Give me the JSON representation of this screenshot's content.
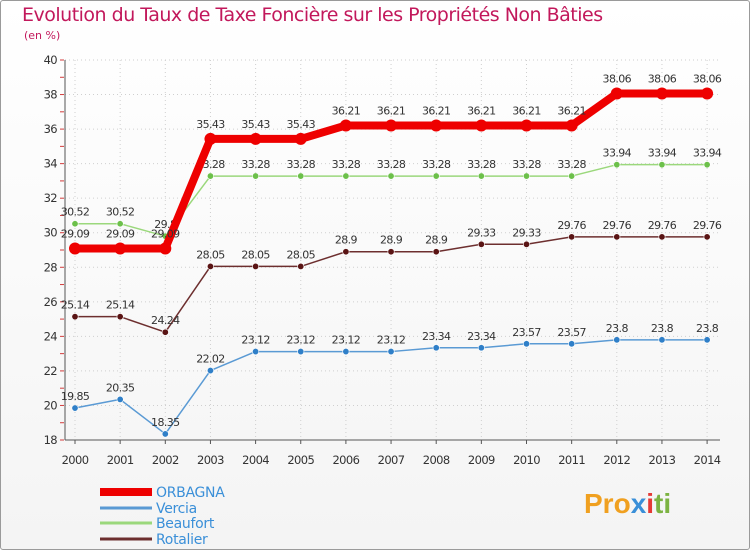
{
  "header": {
    "title": "Evolution du Taux de Taxe Foncière sur les Propriétés Non Bâties",
    "subtitle": "(en %)"
  },
  "logo": {
    "part1": "Pro",
    "part2": "x",
    "part3": "i",
    "part4": "ti"
  },
  "chart_data": {
    "type": "line",
    "title": "Evolution du Taux de Taxe Foncière sur les Propriétés Non Bâties",
    "ylabel": "(en %)",
    "xlabel": "",
    "ylim": [
      18,
      40
    ],
    "yticks": [
      18,
      20,
      22,
      24,
      26,
      28,
      30,
      32,
      34,
      36,
      38,
      40
    ],
    "categories": [
      "2000",
      "2001",
      "2002",
      "2003",
      "2004",
      "2005",
      "2006",
      "2007",
      "2008",
      "2009",
      "2010",
      "2011",
      "2012",
      "2013",
      "2014"
    ],
    "grid": true,
    "legend_position": "bottom-left",
    "series": [
      {
        "name": "Vercia",
        "color": "#5a9ad4",
        "marker": "#2f7fc8",
        "values": [
          19.85,
          20.35,
          18.35,
          22.02,
          23.12,
          23.12,
          23.12,
          23.12,
          23.34,
          23.34,
          23.57,
          23.57,
          23.8,
          23.8,
          23.8
        ],
        "labels": [
          "19.85",
          "20.35",
          "18.35",
          "22.02",
          "23.12",
          "23.12",
          "23.12",
          "23.12",
          "23.34",
          "23.34",
          "23.57",
          "23.57",
          "23.8",
          "23.8",
          "23.8"
        ]
      },
      {
        "name": "Rotalier",
        "color": "#6d2f2f",
        "marker": "#5a1414",
        "values": [
          25.14,
          25.14,
          24.24,
          28.05,
          28.05,
          28.05,
          28.9,
          28.9,
          28.9,
          29.33,
          29.33,
          29.76,
          29.76,
          29.76,
          29.76
        ],
        "labels": [
          "25.14",
          "25.14",
          "24.24",
          "28.05",
          "28.05",
          "28.05",
          "28.9",
          "28.9",
          "28.9",
          "29.33",
          "29.33",
          "29.76",
          "29.76",
          "29.76",
          "29.76"
        ]
      },
      {
        "name": "Beaufort",
        "color": "#9bd87c",
        "marker": "#6cc04a",
        "values": [
          30.52,
          30.52,
          29.8,
          33.28,
          33.28,
          33.28,
          33.28,
          33.28,
          33.28,
          33.28,
          33.28,
          33.28,
          33.94,
          33.94,
          33.94
        ],
        "labels": [
          "30.52",
          "30.52",
          "29.8",
          "33.28",
          "33.28",
          "33.28",
          "33.28",
          "33.28",
          "33.28",
          "33.28",
          "33.28",
          "33.28",
          "33.94",
          "33.94",
          "33.94"
        ]
      },
      {
        "name": "ORBAGNA",
        "color": "#ee0000",
        "marker": "#ee0000",
        "values": [
          29.09,
          29.09,
          29.09,
          35.43,
          35.43,
          35.43,
          36.21,
          36.21,
          36.21,
          36.21,
          36.21,
          36.21,
          38.06,
          38.06,
          38.06
        ],
        "labels": [
          "29.09",
          "29.09",
          "29.09",
          "35.43",
          "35.43",
          "35.43",
          "36.21",
          "36.21",
          "36.21",
          "36.21",
          "36.21",
          "36.21",
          "38.06",
          "38.06",
          "38.06"
        ]
      }
    ],
    "legend": [
      {
        "name": "ORBAGNA",
        "color": "#ee0000"
      },
      {
        "name": "Vercia",
        "color": "#5a9ad4"
      },
      {
        "name": "Beaufort",
        "color": "#9bd87c"
      },
      {
        "name": "Rotalier",
        "color": "#6d2f2f"
      }
    ]
  }
}
